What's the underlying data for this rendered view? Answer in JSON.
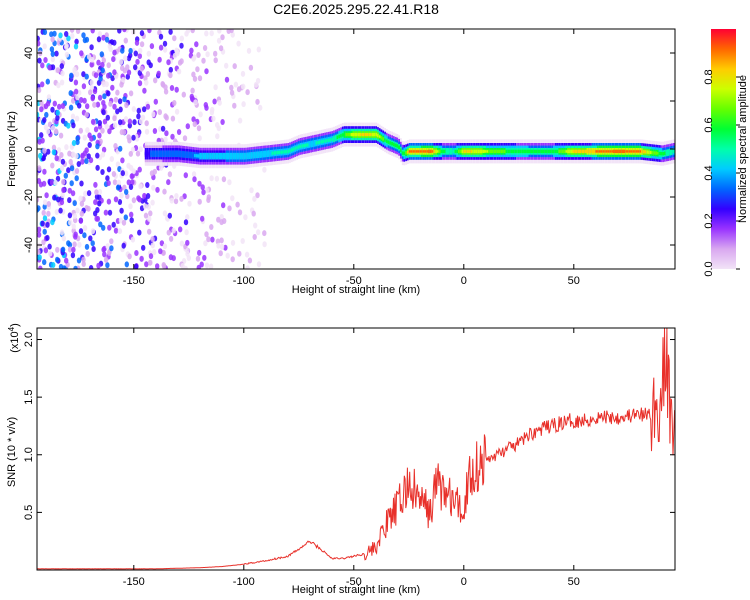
{
  "title": "C2E6.2025.295.22.41.R18",
  "colors": {
    "snr_line": "#e8302a",
    "background": "#ffffff",
    "axis": "#000000"
  },
  "chart_data": [
    {
      "type": "heatmap",
      "xlabel": "Height of straight line (km)",
      "ylabel": "Frequency (Hz)",
      "xlim": [
        -194,
        96
      ],
      "ylim": [
        -50,
        50
      ],
      "xticks": [
        -150,
        -100,
        -50,
        0,
        50
      ],
      "xtick_labels": [
        "-150",
        "-100",
        "-50",
        "0",
        "50"
      ],
      "yticks": [
        -40,
        -20,
        0,
        20,
        40
      ],
      "ytick_labels": [
        "-40",
        "-20",
        "0",
        "20",
        "40"
      ],
      "colorbar": {
        "label": "Normalized spectral amplitude",
        "range": [
          0,
          1
        ],
        "ticks": [
          0,
          0.2,
          0.4,
          0.6,
          0.8
        ],
        "tick_labels": [
          "0.0",
          "0.2",
          "0.4",
          "0.6",
          "0.8"
        ],
        "colormap": [
          "#f2e4f7",
          "#d9a8f0",
          "#9933ff",
          "#3300ff",
          "#0066ff",
          "#00ccff",
          "#00ffaa",
          "#00ff33",
          "#66ff00",
          "#ccff00",
          "#ffcc00",
          "#ff6600",
          "#ff0033"
        ]
      },
      "ridge": {
        "x": [
          -145,
          -130,
          -120,
          -110,
          -100,
          -90,
          -80,
          -75,
          -70,
          -60,
          -55,
          -50,
          -45,
          -40,
          -35,
          -30,
          -28,
          -25,
          -20,
          -15,
          -10,
          -5,
          0,
          10,
          20,
          30,
          40,
          50,
          60,
          70,
          80,
          90,
          95
        ],
        "y": [
          -2,
          -2,
          -3,
          -3,
          -3,
          -2,
          -1,
          1,
          2,
          4,
          6,
          6,
          6,
          6,
          3,
          1,
          -2,
          -1,
          -1,
          -1,
          -1,
          -1,
          -1,
          -1,
          -1,
          -1,
          -1,
          -1,
          -1,
          -1,
          -1,
          -2,
          -1
        ],
        "amplitude": [
          0.3,
          0.35,
          0.4,
          0.4,
          0.45,
          0.45,
          0.5,
          0.5,
          0.45,
          0.5,
          0.6,
          0.75,
          0.8,
          0.75,
          0.55,
          0.55,
          0.55,
          0.85,
          0.85,
          0.9,
          0.55,
          0.5,
          0.8,
          0.7,
          0.6,
          0.55,
          0.55,
          0.8,
          0.85,
          0.9,
          0.85,
          0.55,
          0.5
        ]
      },
      "noise_region_x": [
        -194,
        -110
      ]
    },
    {
      "type": "line",
      "xlabel": "Height of straight line (km)",
      "ylabel": "SNR (10 * v/v)",
      "y_multiplier_label": "(x10",
      "y_multiplier_exp": "4",
      "y_multiplier_close": ")",
      "xlim": [
        -194,
        96
      ],
      "ylim": [
        0,
        2.1
      ],
      "xticks": [
        -150,
        -100,
        -50,
        0,
        50
      ],
      "xtick_labels": [
        "-150",
        "-100",
        "-50",
        "0",
        "50"
      ],
      "yticks": [
        0.5,
        1.0,
        1.5,
        2.0
      ],
      "ytick_labels": [
        "0.5",
        "1.0",
        "1.5",
        "2.0"
      ],
      "series": [
        {
          "color": "#e8302a",
          "x": [
            -194,
            -180,
            -160,
            -140,
            -120,
            -110,
            -100,
            -90,
            -80,
            -75,
            -70,
            -65,
            -60,
            -55,
            -50,
            -45,
            -40,
            -35,
            -30,
            -25,
            -20,
            -15,
            -12,
            -10,
            -5,
            0,
            2,
            5,
            10,
            15,
            20,
            25,
            30,
            35,
            40,
            45,
            50,
            55,
            60,
            65,
            70,
            75,
            80,
            85,
            88,
            90,
            92,
            94,
            96
          ],
          "y": [
            0.01,
            0.01,
            0.01,
            0.01,
            0.02,
            0.03,
            0.05,
            0.08,
            0.12,
            0.18,
            0.25,
            0.18,
            0.1,
            0.1,
            0.12,
            0.14,
            0.2,
            0.4,
            0.55,
            0.75,
            0.6,
            0.5,
            0.8,
            0.7,
            0.6,
            0.5,
            0.8,
            0.9,
            0.95,
            1.0,
            1.05,
            1.1,
            1.18,
            1.22,
            1.25,
            1.28,
            1.3,
            1.3,
            1.32,
            1.33,
            1.33,
            1.34,
            1.34,
            1.35,
            1.38,
            1.5,
            1.9,
            1.3,
            1.3
          ]
        }
      ]
    }
  ]
}
